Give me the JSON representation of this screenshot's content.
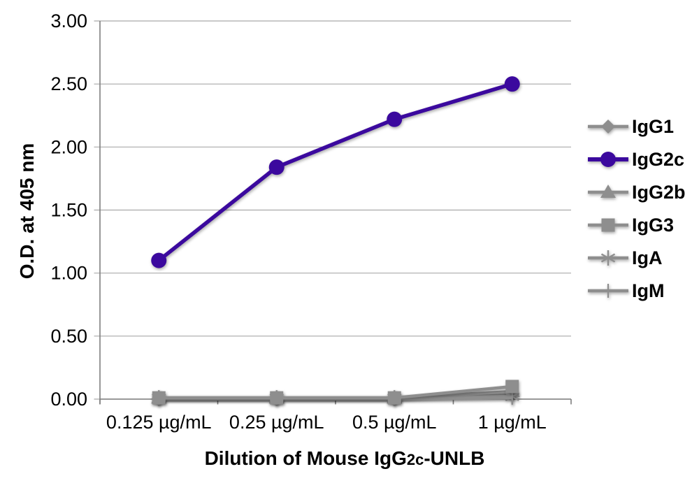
{
  "figure": {
    "background": "#ffffff"
  },
  "chart_data": {
    "type": "line",
    "title": "",
    "ylabel": "O.D. at 405 nm",
    "xlabel_parts": {
      "prefix": "Dilution of Mouse IgG",
      "sub": "2c",
      "suffix": "-UNLB"
    },
    "categories": [
      "0.125 µg/mL",
      "0.25 µg/mL",
      "0.5 µg/mL",
      "1 µg/mL"
    ],
    "ylim": [
      0,
      3
    ],
    "y_ticks": [
      "0.00",
      "0.50",
      "1.00",
      "1.50",
      "2.00",
      "2.50",
      "3.00"
    ],
    "grid": "horizontal",
    "legend_position": "right",
    "colors": {
      "accent_purple": "#3b099e",
      "series_gray": "#8e8e8e",
      "grid_gray": "#a9a9a9",
      "axis_gray": "#7f7f7f",
      "text_black": "#000000"
    },
    "series": [
      {
        "name": "IgG1",
        "marker": "diamond",
        "color": "#8e8e8e",
        "z": 1,
        "values": [
          0.01,
          0.01,
          0.01,
          0.04
        ]
      },
      {
        "name": "IgG2c",
        "marker": "circle",
        "color": "#3b099e",
        "z": 6,
        "values": [
          1.1,
          1.84,
          2.22,
          2.5
        ]
      },
      {
        "name": "IgG2b",
        "marker": "triangle",
        "color": "#8e8e8e",
        "z": 2,
        "values": [
          0.01,
          0.01,
          0.01,
          0.06
        ]
      },
      {
        "name": "IgG3",
        "marker": "square",
        "color": "#8e8e8e",
        "z": 5,
        "values": [
          0.01,
          0.01,
          0.01,
          0.1
        ]
      },
      {
        "name": "IgA",
        "marker": "asterisk",
        "color": "#8e8e8e",
        "z": 3,
        "values": [
          0.01,
          0.01,
          0.01,
          0.02
        ]
      },
      {
        "name": "IgM",
        "marker": "dash",
        "color": "#8e8e8e",
        "z": 4,
        "values": [
          0.0,
          0.0,
          0.0,
          0.01
        ]
      }
    ]
  }
}
